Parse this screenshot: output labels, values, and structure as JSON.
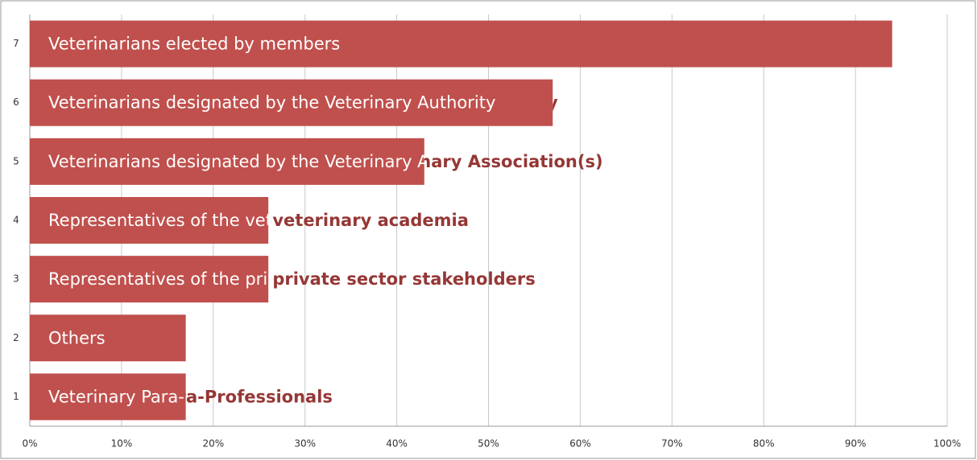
{
  "chart_data": {
    "type": "bar",
    "orientation": "horizontal",
    "categories": [
      "7",
      "6",
      "5",
      "4",
      "3",
      "2",
      "1"
    ],
    "bar_labels": [
      "Veterinarians elected by members",
      "Veterinarians designated by the Veterinary Authority",
      "Veterinarians designated by the Veterinary Association(s)",
      "Representatives of the veterinary academia",
      "Representatives of the private sector stakeholders",
      "Others",
      "Veterinary Para-Professionals"
    ],
    "values": [
      94,
      57,
      43,
      26,
      26,
      17,
      17
    ],
    "color": "#c0504d",
    "xlim": [
      0,
      100
    ],
    "xticks": [
      {
        "value": 0,
        "label": "0%"
      },
      {
        "value": 10,
        "label": "10%"
      },
      {
        "value": 20,
        "label": "20%"
      },
      {
        "value": 30,
        "label": "30%"
      },
      {
        "value": 40,
        "label": "40%"
      },
      {
        "value": 50,
        "label": "50%"
      },
      {
        "value": 60,
        "label": "60%"
      },
      {
        "value": 70,
        "label": "70%"
      },
      {
        "value": 80,
        "label": "80%"
      },
      {
        "value": 90,
        "label": "90%"
      },
      {
        "value": 100,
        "label": "100%"
      }
    ],
    "grid": true
  }
}
